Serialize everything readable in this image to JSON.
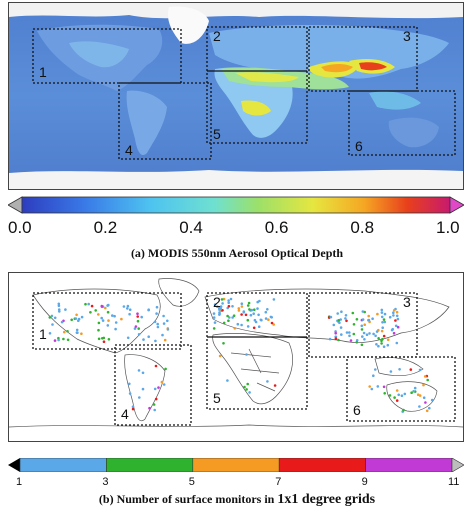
{
  "panel_a": {
    "caption": "(a) MODIS 550nm Aerosol Optical Depth",
    "colorbar_ticks": [
      "0.0",
      "0.2",
      "0.4",
      "0.6",
      "0.8",
      "1.0"
    ],
    "colorbar_colors": [
      "#b0b0b0",
      "#2d3dbf",
      "#3a7be8",
      "#4ec3f0",
      "#6fe0d0",
      "#9be06a",
      "#e6e640",
      "#f5a623",
      "#e8401c",
      "#c81a6e",
      "#e048c8"
    ]
  },
  "panel_b": {
    "caption_prefix": "(b) Number of surface monitors in ",
    "caption_emph": "1x1 degree grids",
    "colorbar_ticks": [
      "1",
      "3",
      "5",
      "7",
      "9",
      "11"
    ],
    "colorbar_colors": [
      "#000000",
      "#5ba8e8",
      "#2fb32f",
      "#f59a23",
      "#e81a1a",
      "#c23ad6",
      "#bdbdbd"
    ]
  },
  "regions": [
    "1",
    "2",
    "3",
    "4",
    "5",
    "6"
  ]
}
